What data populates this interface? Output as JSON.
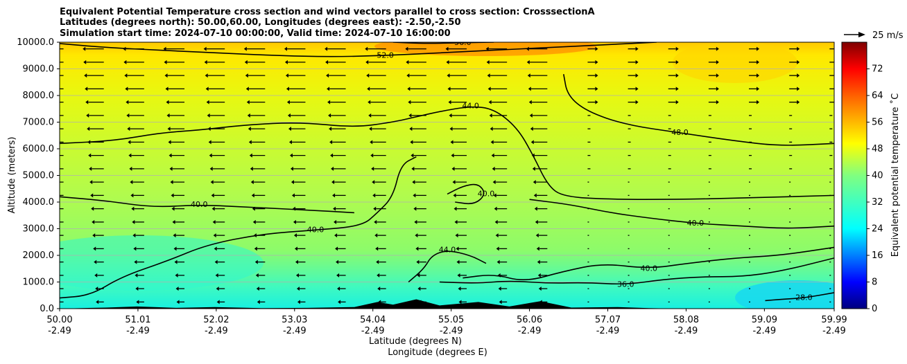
{
  "chart_data": {
    "type": "heatmap",
    "title": [
      "Equivalent Potential Temperature cross section and wind vectors parallel to cross section: CrosssectionA",
      "Latitudes (degrees north): 50.00,60.00, Longitudes (degrees east): -2.50,-2.50",
      "Simulation start time: 2024-07-10 00:00:00, Valid time: 2024-07-10 16:00:00"
    ],
    "xlabel": [
      "Latitude (degrees N)",
      "Longitude (degrees E)"
    ],
    "ylabel": "Altitude (meters)",
    "xlim": [
      50.0,
      59.99
    ],
    "ylim": [
      0,
      10000
    ],
    "x_ticks": [
      {
        "lat": "50.00",
        "lon": "-2.49",
        "value": 50.0
      },
      {
        "lat": "51.01",
        "lon": "-2.49",
        "value": 51.01
      },
      {
        "lat": "52.02",
        "lon": "-2.49",
        "value": 52.02
      },
      {
        "lat": "53.03",
        "lon": "-2.49",
        "value": 53.03
      },
      {
        "lat": "54.04",
        "lon": "-2.49",
        "value": 54.04
      },
      {
        "lat": "55.05",
        "lon": "-2.49",
        "value": 55.05
      },
      {
        "lat": "56.06",
        "lon": "-2.49",
        "value": 56.06
      },
      {
        "lat": "57.07",
        "lon": "-2.49",
        "value": 57.07
      },
      {
        "lat": "58.08",
        "lon": "-2.49",
        "value": 58.08
      },
      {
        "lat": "59.09",
        "lon": "-2.49",
        "value": 59.09
      },
      {
        "lat": "59.99",
        "lon": "-2.49",
        "value": 59.99
      }
    ],
    "y_ticks": [
      {
        "label": "0.0",
        "value": 0
      },
      {
        "label": "1000.0",
        "value": 1000
      },
      {
        "label": "2000.0",
        "value": 2000
      },
      {
        "label": "3000.0",
        "value": 3000
      },
      {
        "label": "4000.0",
        "value": 4000
      },
      {
        "label": "5000.0",
        "value": 5000
      },
      {
        "label": "6000.0",
        "value": 6000
      },
      {
        "label": "7000.0",
        "value": 7000
      },
      {
        "label": "8000.0",
        "value": 8000
      },
      {
        "label": "9000.0",
        "value": 9000
      },
      {
        "label": "10000.0",
        "value": 10000
      }
    ],
    "grid": "horizontal",
    "colorbar": {
      "label": "Equivalent potential temperature ˚C",
      "range": [
        0,
        80
      ],
      "ticks": [
        "0",
        "8",
        "16",
        "24",
        "32",
        "40",
        "48",
        "56",
        "64",
        "72"
      ],
      "colormap": "jet"
    },
    "quiver_key": {
      "label": "25 m/s",
      "value": 25
    },
    "contours": [
      {
        "level": 28,
        "label": "28.0",
        "points": [
          [
            59.1,
            300
          ],
          [
            59.3,
            350
          ],
          [
            59.6,
            400
          ],
          [
            59.99,
            600
          ]
        ]
      },
      {
        "level": 36,
        "label": "36.0",
        "points": [
          [
            54.9,
            1000
          ],
          [
            55.4,
            950
          ],
          [
            55.8,
            1050
          ],
          [
            56.3,
            950
          ],
          [
            56.8,
            980
          ],
          [
            57.3,
            900
          ],
          [
            57.8,
            1100
          ],
          [
            58.3,
            1200
          ],
          [
            58.8,
            1200
          ],
          [
            59.3,
            1400
          ],
          [
            59.99,
            1900
          ]
        ]
      },
      {
        "level": 40,
        "label": "40.0",
        "points": [
          [
            50.0,
            400
          ],
          [
            50.4,
            500
          ],
          [
            50.8,
            1200
          ],
          [
            51.4,
            1800
          ],
          [
            51.9,
            2400
          ],
          [
            52.6,
            2800
          ],
          [
            53.3,
            2950
          ],
          [
            53.9,
            3100
          ],
          [
            54.1,
            3600
          ],
          [
            54.3,
            4200
          ],
          [
            54.4,
            5400
          ],
          [
            54.6,
            5700
          ]
        ]
      },
      {
        "level": 40,
        "label": "40.0",
        "points": [
          [
            55.2,
            1150
          ],
          [
            55.6,
            1300
          ],
          [
            56.0,
            1000
          ],
          [
            56.5,
            1400
          ],
          [
            57.0,
            1700
          ],
          [
            57.6,
            1500
          ],
          [
            58.1,
            1700
          ],
          [
            58.7,
            1900
          ],
          [
            59.3,
            2000
          ],
          [
            59.99,
            2300
          ]
        ]
      },
      {
        "level": 40,
        "label": "40.0",
        "points": [
          [
            50.0,
            4200
          ],
          [
            50.6,
            4050
          ],
          [
            51.2,
            3800
          ],
          [
            51.8,
            3900
          ],
          [
            52.5,
            3800
          ],
          [
            53.2,
            3700
          ],
          [
            53.8,
            3600
          ]
        ]
      },
      {
        "level": 40,
        "label": "40.0",
        "points": [
          [
            56.06,
            4100
          ],
          [
            56.6,
            3900
          ],
          [
            57.1,
            3600
          ],
          [
            57.6,
            3400
          ],
          [
            58.2,
            3200
          ],
          [
            58.8,
            3100
          ],
          [
            59.4,
            3000
          ],
          [
            59.99,
            3100
          ]
        ]
      },
      {
        "level": 40,
        "label": "40.0",
        "points": [
          [
            55.0,
            4300
          ],
          [
            55.2,
            4600
          ],
          [
            55.4,
            4700
          ],
          [
            55.5,
            4300
          ],
          [
            55.35,
            3900
          ],
          [
            55.1,
            4000
          ]
        ]
      },
      {
        "level": 44,
        "label": "44.0",
        "points": [
          [
            54.5,
            1000
          ],
          [
            54.7,
            1500
          ],
          [
            54.8,
            2000
          ],
          [
            55.0,
            2200
          ],
          [
            55.3,
            2000
          ],
          [
            55.5,
            1700
          ]
        ]
      },
      {
        "level": 44,
        "label": "44.0",
        "points": [
          [
            50.0,
            6200
          ],
          [
            50.7,
            6300
          ],
          [
            51.3,
            6600
          ],
          [
            51.8,
            6700
          ],
          [
            52.4,
            6900
          ],
          [
            53.1,
            7000
          ],
          [
            53.8,
            6800
          ],
          [
            54.3,
            7000
          ],
          [
            54.6,
            7200
          ],
          [
            54.9,
            7400
          ],
          [
            55.3,
            7600
          ],
          [
            55.6,
            7500
          ],
          [
            55.9,
            6800
          ],
          [
            56.1,
            5800
          ],
          [
            56.3,
            4600
          ],
          [
            56.5,
            4200
          ],
          [
            57.1,
            4100
          ],
          [
            58.0,
            4100
          ],
          [
            58.8,
            4150
          ],
          [
            59.99,
            4250
          ]
        ]
      },
      {
        "level": 48,
        "label": "48.0",
        "points": [
          [
            56.5,
            8800
          ],
          [
            56.55,
            8000
          ],
          [
            56.8,
            7400
          ],
          [
            57.3,
            6900
          ],
          [
            58.0,
            6600
          ],
          [
            58.7,
            6300
          ],
          [
            59.3,
            6100
          ],
          [
            59.99,
            6200
          ]
        ]
      },
      {
        "level": 52,
        "label": "52.0",
        "points": [
          [
            50.0,
            9950
          ],
          [
            50.6,
            9800
          ],
          [
            51.3,
            9700
          ],
          [
            52.0,
            9600
          ],
          [
            52.8,
            9500
          ],
          [
            53.5,
            9450
          ],
          [
            54.2,
            9500
          ],
          [
            54.9,
            9600
          ],
          [
            55.6,
            9700
          ],
          [
            56.3,
            9800
          ],
          [
            57.0,
            9900
          ],
          [
            57.7,
            10000
          ]
        ]
      },
      {
        "level": 56,
        "label": "56.0",
        "points": [
          [
            54.3,
            10000
          ],
          [
            54.7,
            9950
          ],
          [
            55.2,
            9980
          ],
          [
            55.6,
            10000
          ]
        ]
      }
    ],
    "wind_vectors": "arrows parallel to cross section; leftward (northerly) aloft and south of 56.5N, weak eastward north of 57N",
    "terrain": "black orography profile near surface"
  }
}
